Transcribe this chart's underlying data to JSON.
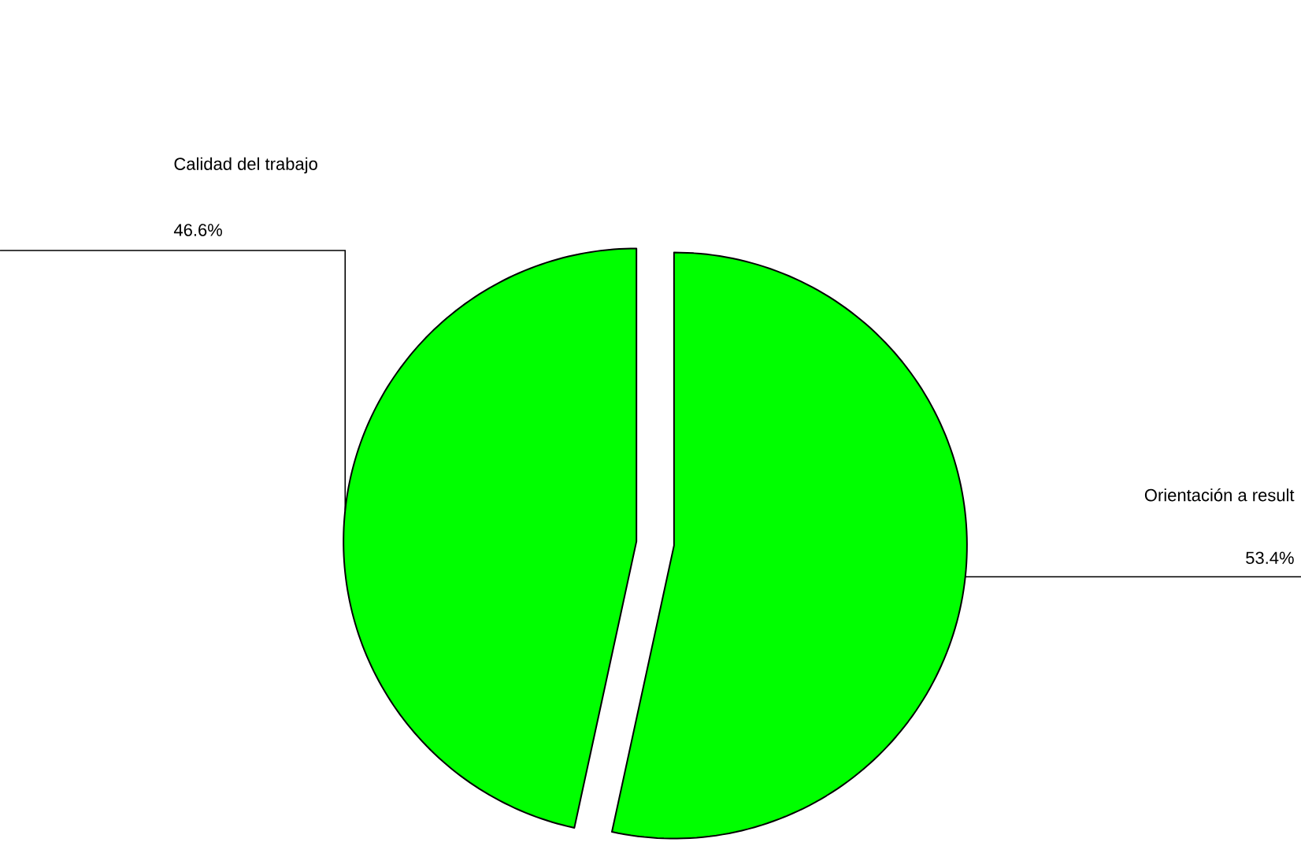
{
  "chart_data": {
    "type": "pie",
    "categories": [
      "Calidad del trabajo",
      "Orientación a result"
    ],
    "values": [
      46.6,
      53.4
    ],
    "colors": [
      "#00ff00",
      "#00ff00"
    ],
    "value_labels": [
      "46.6%",
      "53.4%"
    ]
  }
}
